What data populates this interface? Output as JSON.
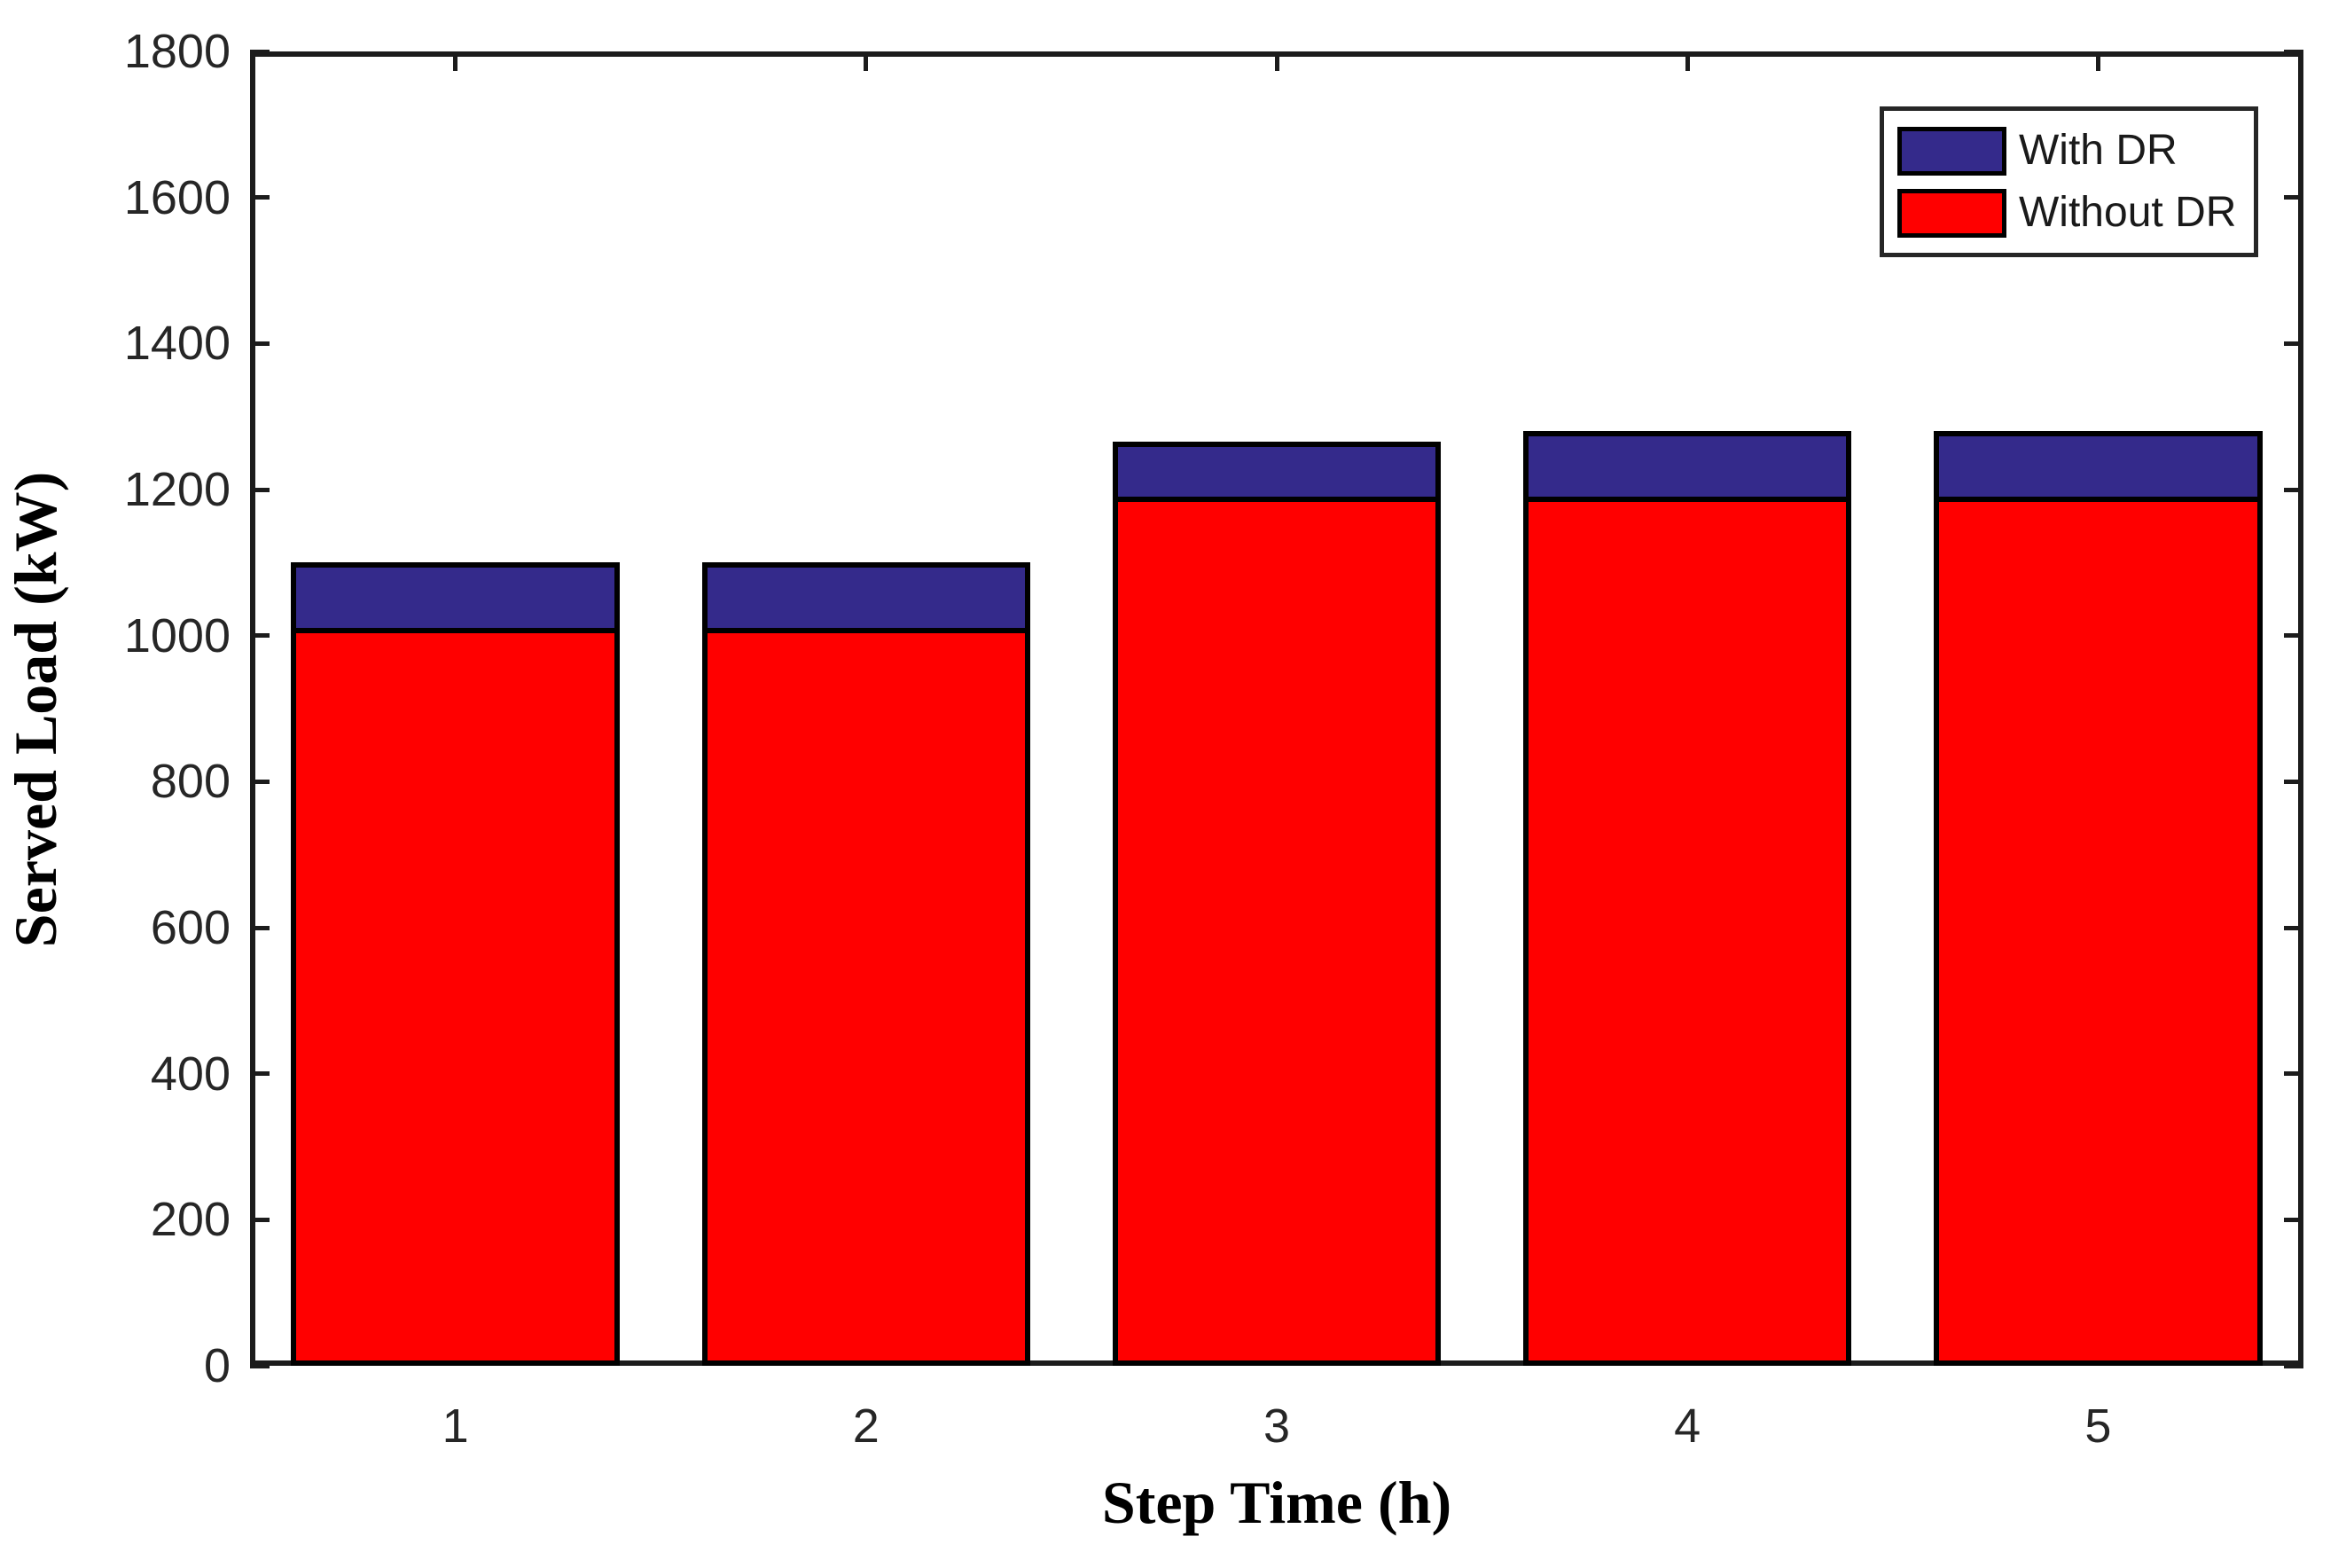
{
  "chart_data": {
    "type": "bar",
    "mode": "overlay",
    "title": "",
    "xlabel": "Step Time (h)",
    "ylabel": "Served Load (kW)",
    "categories": [
      "1",
      "2",
      "3",
      "4",
      "5"
    ],
    "series": [
      {
        "name": "With DR",
        "color": "#342A8B",
        "values": [
          1100,
          1100,
          1265,
          1280,
          1280
        ]
      },
      {
        "name": "Without DR",
        "color": "#FF0000",
        "values": [
          1010,
          1010,
          1190,
          1190,
          1190
        ]
      }
    ],
    "ylim": [
      0,
      1800
    ],
    "yticks": [
      0,
      200,
      400,
      600,
      800,
      1000,
      1200,
      1400,
      1600,
      1800
    ],
    "xticks": [
      "1",
      "2",
      "3",
      "4",
      "5"
    ],
    "bar_width_fraction": 0.8,
    "grid": false,
    "legend": {
      "position": "northeast",
      "entries": [
        {
          "label": "With DR",
          "color": "#342A8B"
        },
        {
          "label": "Without DR",
          "color": "#FF0000"
        }
      ]
    },
    "frame": {
      "box": true,
      "tick_direction": "in",
      "edge_color": "#000000"
    }
  }
}
